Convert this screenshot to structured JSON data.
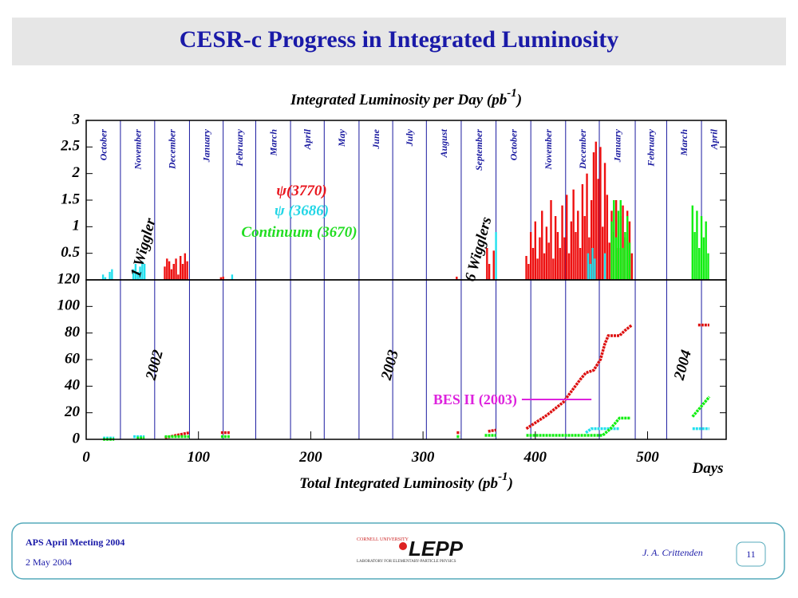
{
  "slide": {
    "title": "CESR-c Progress in Integrated Luminosity",
    "footer": {
      "meeting": "APS April Meeting 2004",
      "date": "2 May 2004",
      "logo_top": "CORNELL UNIVERSITY",
      "logo": "LEPP",
      "logo_sub": "LABORATORY FOR ELEMENTARY-PARTICLE PHYSICS",
      "author": "J. A. Crittenden",
      "page": "11"
    }
  },
  "chart_data": [
    {
      "type": "bar",
      "title": {
        "text": "Integrated Luminosity per Day (pb",
        "sup": "-1",
        "close": ")"
      },
      "xlim": [
        0,
        570
      ],
      "ylim": [
        0,
        3
      ],
      "yticks": [
        0.5,
        1,
        1.5,
        2,
        2.5,
        3
      ],
      "months": [
        "October",
        "November",
        "December",
        "January",
        "February",
        "March",
        "April",
        "May",
        "June",
        "July",
        "August",
        "September",
        "October",
        "November",
        "December",
        "January",
        "February",
        "March",
        "April"
      ],
      "month_boundaries": [
        30.5,
        61,
        92,
        122,
        151,
        182,
        212,
        243,
        273,
        303,
        334,
        365,
        396,
        427,
        457,
        489,
        517,
        548
      ],
      "annotations": [
        {
          "text": "1 Wiggler",
          "color": "#000000"
        },
        {
          "text": "6 Wigglers",
          "color": "#000000"
        },
        {
          "text": "ψ(3770)",
          "color": "#e8141c"
        },
        {
          "text": "ψ (3686)",
          "color": "#22d6e6"
        },
        {
          "text": "Continuum (3670)",
          "color": "#22dd22"
        }
      ],
      "series": [
        {
          "name": "ψ(3770)",
          "color": "#ee1111",
          "x": [
            70,
            72,
            74,
            76,
            78,
            80,
            82,
            84,
            86,
            88,
            90,
            120,
            122,
            330,
            357,
            359,
            363,
            392,
            394,
            396,
            398,
            400,
            402,
            404,
            406,
            408,
            410,
            412,
            414,
            416,
            418,
            420,
            422,
            424,
            426,
            428,
            430,
            432,
            434,
            436,
            438,
            440,
            442,
            444,
            446,
            448,
            450,
            452,
            454,
            456,
            458,
            460,
            462,
            464,
            466,
            468,
            470,
            472,
            474,
            476,
            478,
            480,
            482,
            484,
            486
          ],
          "values": [
            0.25,
            0.4,
            0.35,
            0.2,
            0.3,
            0.4,
            0.1,
            0.45,
            0.3,
            0.5,
            0.35,
            0.05,
            0.06,
            0.06,
            0.6,
            0.3,
            0.55,
            0.45,
            0.3,
            0.9,
            0.6,
            1.1,
            0.4,
            0.8,
            1.3,
            0.5,
            1.0,
            0.7,
            1.5,
            0.4,
            1.2,
            0.9,
            0.6,
            1.4,
            0.8,
            1.6,
            0.5,
            1.1,
            1.7,
            0.9,
            1.3,
            0.6,
            1.8,
            1.2,
            2.0,
            0.8,
            1.5,
            2.4,
            2.6,
            1.9,
            2.5,
            1.0,
            2.2,
            1.6,
            0.7,
            1.3,
            0.9,
            1.5,
            0.6,
            1.2,
            1.4,
            0.8,
            1.3,
            1.1,
            0.5
          ]
        },
        {
          "name": "ψ (3686)",
          "color": "#22e0ee",
          "x": [
            15,
            17,
            21,
            23,
            42,
            44,
            46,
            48,
            50,
            52,
            130,
            365,
            447,
            449,
            451,
            453,
            462
          ],
          "values": [
            0.1,
            0.05,
            0.15,
            0.2,
            0.2,
            0.3,
            0.15,
            0.25,
            0.35,
            0.3,
            0.1,
            0.9,
            0.5,
            0.3,
            0.6,
            0.4,
            0.5
          ]
        },
        {
          "name": "Continuum (3670)",
          "color": "#11ee11",
          "x": [
            468,
            470,
            472,
            474,
            476,
            478,
            480,
            482,
            484,
            540,
            542,
            544,
            546,
            548,
            550,
            552,
            554
          ],
          "values": [
            1.1,
            1.5,
            0.8,
            1.3,
            1.5,
            0.6,
            0.9,
            1.2,
            0.7,
            1.4,
            0.9,
            1.3,
            0.6,
            1.2,
            0.8,
            1.1,
            0.5
          ]
        }
      ]
    },
    {
      "type": "line",
      "xlabel": {
        "text": "Total Integrated Luminosity (pb",
        "sup": "-1",
        "close": ")"
      },
      "xunit": "Days",
      "xlim": [
        0,
        570
      ],
      "ylim": [
        0,
        120
      ],
      "xticks": [
        0,
        100,
        200,
        300,
        400,
        500
      ],
      "yticks": [
        0,
        20,
        40,
        60,
        80,
        100,
        120
      ],
      "annotations": [
        {
          "text": "2002"
        },
        {
          "text": "2003"
        },
        {
          "text": "2004"
        }
      ],
      "reference": {
        "name": "BES II (2003)",
        "color": "#dd22dd",
        "value": 30,
        "x": [
          388,
          450
        ]
      },
      "series": [
        {
          "name": "ψ(3770)",
          "color": "#dd1111",
          "x": [
            70,
            80,
            92,
            null,
            120,
            128,
            null,
            330,
            333,
            null,
            358,
            365,
            null,
            392,
            410,
            425,
            440,
            445,
            452,
            458,
            462,
            465,
            475,
            480,
            486,
            null,
            545,
            555
          ],
          "values": [
            1,
            3,
            5,
            null,
            5,
            5,
            null,
            5,
            5,
            null,
            6,
            7,
            null,
            8,
            18,
            28,
            45,
            50,
            52,
            60,
            72,
            78,
            78,
            82,
            86,
            null,
            86,
            86
          ]
        },
        {
          "name": "ψ (3686)",
          "color": "#22e0ee",
          "x": [
            15,
            25,
            null,
            42,
            52,
            null,
            445,
            450,
            475,
            null,
            540,
            555
          ],
          "values": [
            1,
            1,
            null,
            2,
            2,
            null,
            5,
            8,
            8,
            null,
            8,
            8
          ]
        },
        {
          "name": "Continuum (3670)",
          "color": "#11ee11",
          "x": [
            15,
            25,
            null,
            45,
            52,
            null,
            70,
            92,
            null,
            120,
            128,
            null,
            330,
            333,
            null,
            355,
            365,
            null,
            392,
            460,
            467,
            475,
            485,
            null,
            540,
            555
          ],
          "values": [
            0,
            0,
            null,
            1,
            1,
            null,
            2,
            2,
            null,
            2,
            2,
            null,
            2,
            2,
            null,
            3,
            3,
            null,
            3,
            3,
            8,
            16,
            16,
            null,
            17,
            32
          ]
        }
      ]
    }
  ]
}
